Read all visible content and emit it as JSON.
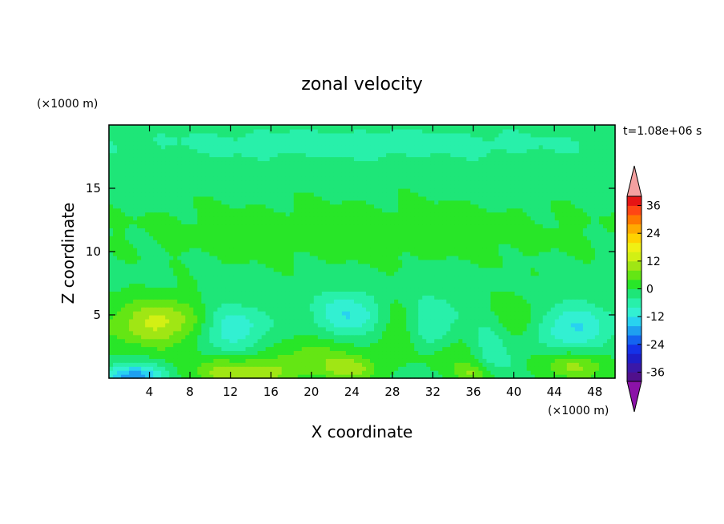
{
  "chart_data": {
    "type": "heatmap",
    "title": "zonal velocity",
    "xlabel": "X coordinate",
    "ylabel": "Z coordinate",
    "x_unit": "(×1000 m)",
    "y_unit": "(×1000 m)",
    "time_label": "t=1.08e+06 s",
    "xlim": [
      0,
      50
    ],
    "ylim": [
      0,
      20
    ],
    "x_ticks": [
      4,
      8,
      12,
      16,
      20,
      24,
      28,
      32,
      36,
      40,
      44,
      48
    ],
    "y_ticks": [
      5,
      10,
      15
    ],
    "colorbar": {
      "min": -40,
      "max": 40,
      "step": 4,
      "tick_labels": [
        36,
        24,
        12,
        0,
        -12,
        -24,
        -36
      ],
      "over_color": "#f4a0a0",
      "under_color": "#8b12a8"
    },
    "features": [
      {
        "x": 5,
        "z": 4.5,
        "value": 11,
        "sx": 4.5,
        "sz": 1.7
      },
      {
        "x": 5,
        "z": 4.0,
        "value": 4,
        "sx": 6.5,
        "sz": 2.6
      },
      {
        "x": 2.5,
        "z": 0.2,
        "value": -18,
        "sx": 3.0,
        "sz": 0.9
      },
      {
        "x": 13,
        "z": 0.5,
        "value": 13,
        "sx": 5.0,
        "sz": 1.1
      },
      {
        "x": 12,
        "z": 4.0,
        "value": -11,
        "sx": 3.5,
        "sz": 1.8
      },
      {
        "x": 18,
        "z": 1.5,
        "value": 4,
        "sx": 3.0,
        "sz": 2.0
      },
      {
        "x": 22,
        "z": 2.0,
        "value": 6,
        "sx": 3.0,
        "sz": 1.7
      },
      {
        "x": 24,
        "z": 0.8,
        "value": 10,
        "sx": 2.5,
        "sz": 1.0
      },
      {
        "x": 23.5,
        "z": 5.0,
        "value": -11,
        "sx": 3.0,
        "sz": 1.8
      },
      {
        "x": 28.5,
        "z": 3.5,
        "value": 6,
        "sx": 2.0,
        "sz": 2.6
      },
      {
        "x": 32,
        "z": 4.0,
        "value": -6,
        "sx": 3.0,
        "sz": 2.6
      },
      {
        "x": 34,
        "z": 2.0,
        "value": 7,
        "sx": 3.0,
        "sz": 1.6
      },
      {
        "x": 36,
        "z": 0.4,
        "value": 9,
        "sx": 2.0,
        "sz": 0.8
      },
      {
        "x": 38,
        "z": 2.5,
        "value": -7,
        "sx": 2.5,
        "sz": 2.2
      },
      {
        "x": 40,
        "z": 4.5,
        "value": 6,
        "sx": 2.5,
        "sz": 2.2
      },
      {
        "x": 46,
        "z": 4.0,
        "value": -11,
        "sx": 3.5,
        "sz": 1.8
      },
      {
        "x": 46,
        "z": 1.0,
        "value": 10,
        "sx": 3.5,
        "sz": 1.2
      },
      {
        "x": 25,
        "z": 11.5,
        "value": 3,
        "sx": 30,
        "sz": 3.0
      },
      {
        "x": 25,
        "z": 18.5,
        "value": -4,
        "sx": 30,
        "sz": 1.5
      }
    ]
  }
}
